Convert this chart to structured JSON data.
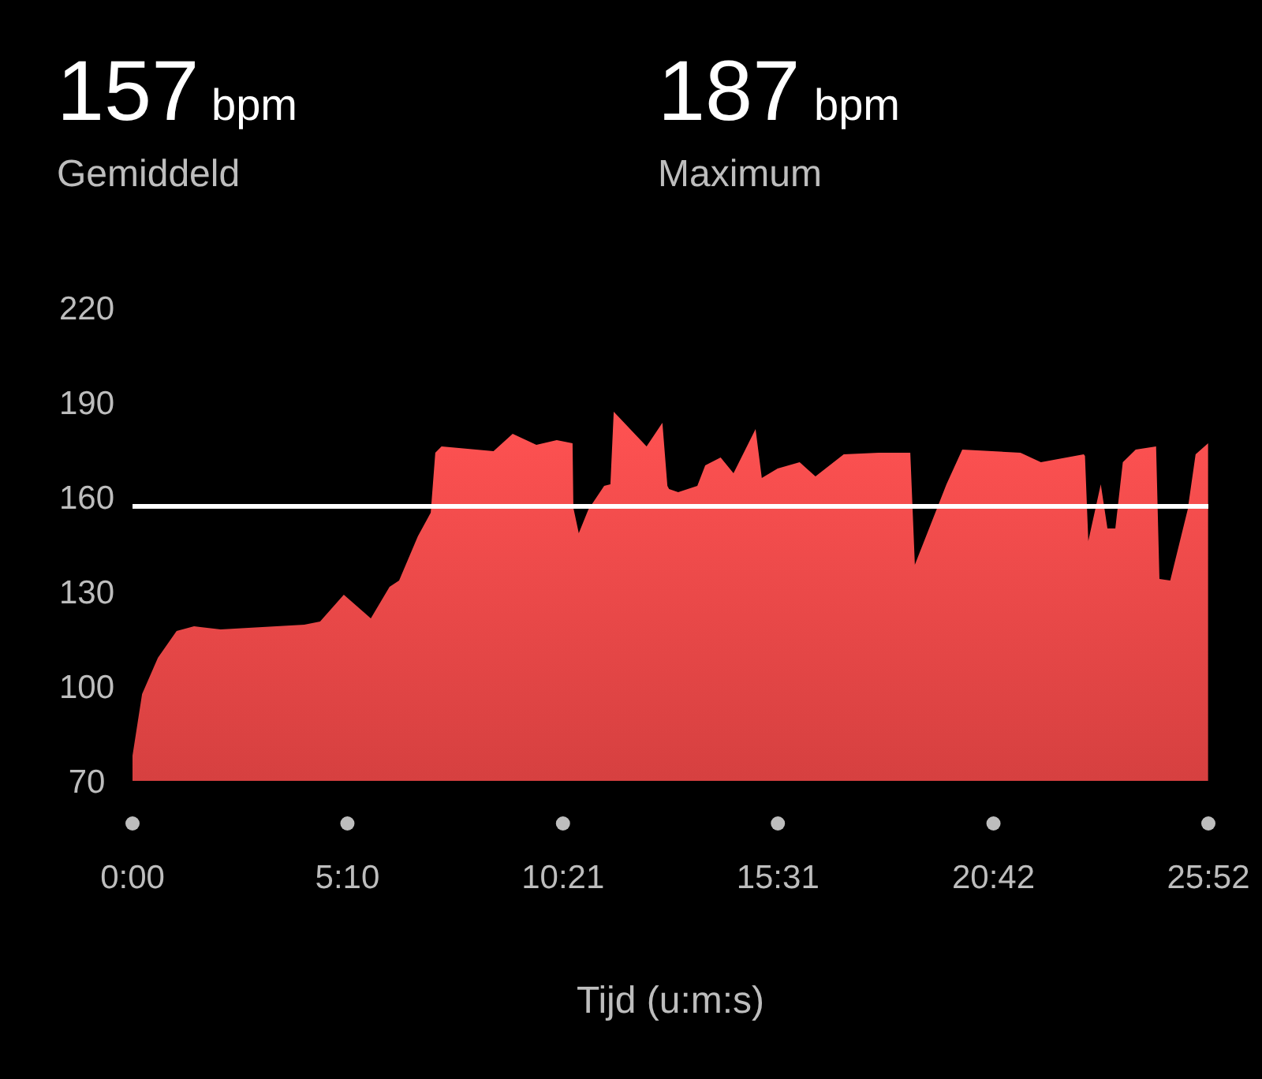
{
  "chart_data": {
    "type": "area",
    "xlabel": "Tijd (u:m:s)",
    "annotations": [
      "157",
      "bpm",
      "Gemiddeld",
      "187",
      "bpm",
      "Maximum"
    ],
    "x": [
      0,
      0.23,
      0.61,
      1.06,
      1.48,
      2.12,
      4.13,
      4.51,
      5.08,
      5.73,
      6.18,
      6.41,
      6.86,
      7.17,
      7.28,
      7.43,
      8.68,
      9.14,
      9.71,
      10.2,
      10.58,
      10.6,
      10.73,
      10.96,
      11.34,
      11.49,
      11.57,
      12.36,
      12.74,
      12.86,
      12.9,
      13.12,
      13.58,
      13.77,
      14.14,
      14.45,
      14.98,
      15.13,
      15.51,
      16.04,
      16.42,
      17.1,
      17.94,
      18.7,
      18.81,
      19.57,
      19.95,
      21.35,
      21.84,
      22.87,
      22.9,
      22.98,
      23.28,
      23.44,
      23.63,
      23.81,
      24.12,
      24.61,
      24.69,
      24.95,
      25.37,
      25.56,
      25.86
    ],
    "values": [
      78,
      97.5,
      109,
      117.5,
      119,
      118,
      119.5,
      120.5,
      129,
      121.5,
      131.5,
      133.5,
      147.5,
      155,
      174,
      176,
      174.5,
      180,
      176.5,
      178,
      177,
      156.5,
      148.5,
      156,
      163.5,
      164,
      187,
      176,
      183.5,
      163.5,
      162.5,
      161.5,
      163.5,
      170,
      172.5,
      167.5,
      181.5,
      166,
      169,
      171,
      166.5,
      173.5,
      174,
      174,
      138.5,
      164,
      175,
      174,
      171,
      173.5,
      173,
      146,
      164,
      150,
      150,
      171,
      175,
      176,
      134,
      133.5,
      156,
      173.5,
      177
    ],
    "color": "#ee4747",
    "xlim": [
      0,
      25.8667
    ],
    "xticks": [
      {
        "value": 0,
        "label": "0:00"
      },
      {
        "value": 5.1667,
        "label": "5:10"
      },
      {
        "value": 10.35,
        "label": "10:21"
      },
      {
        "value": 15.5167,
        "label": "15:31"
      },
      {
        "value": 20.7,
        "label": "20:42"
      },
      {
        "value": 25.8667,
        "label": "25:52"
      }
    ],
    "ylim": [
      70,
      220
    ],
    "yticks": [
      70,
      100,
      130,
      160,
      190,
      220
    ],
    "ref_lines": [
      {
        "axis": "y",
        "value": 157,
        "color": "#ffffff"
      }
    ],
    "grid": false
  }
}
